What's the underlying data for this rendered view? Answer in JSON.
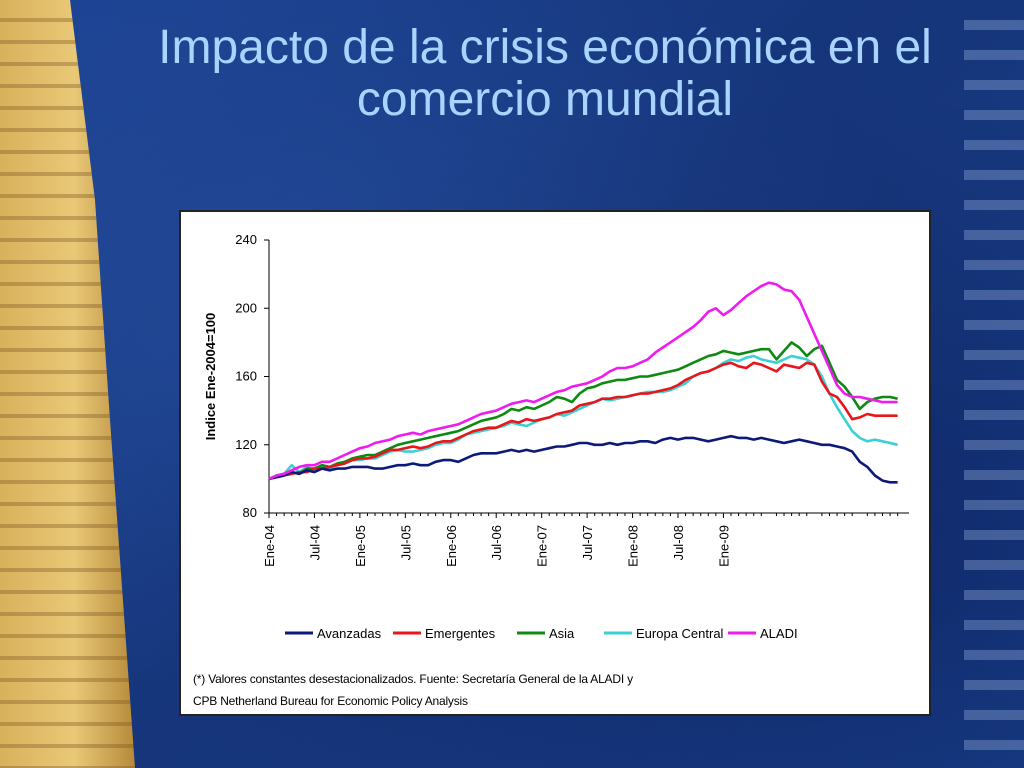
{
  "title": "Impacto de la crisis económica en el comercio mundial",
  "chart_data": {
    "type": "line",
    "ylabel": "Indice Ene-2004=100",
    "ylim": [
      80,
      240
    ],
    "yticks": [
      80,
      120,
      160,
      200,
      240
    ],
    "xlabels": [
      "Ene-04",
      "Jul-04",
      "Ene-05",
      "Jul-05",
      "Ene-06",
      "Jul-06",
      "Ene-07",
      "Jul-07",
      "Ene-08",
      "Jul-08",
      "Ene-09"
    ],
    "x_months_start": "Ene-04",
    "grid": false,
    "legend_position": "bottom",
    "series": [
      {
        "name": "Avanzadas",
        "color": "#0b1a7a",
        "values": [
          100,
          101,
          102,
          104,
          103,
          105,
          104,
          106,
          105,
          106,
          106,
          107,
          107,
          107,
          106,
          106,
          107,
          108,
          108,
          109,
          108,
          108,
          110,
          111,
          111,
          110,
          112,
          114,
          115,
          115,
          115,
          116,
          117,
          116,
          117,
          116,
          117,
          118,
          119,
          119,
          120,
          121,
          121,
          120,
          120,
          121,
          120,
          121,
          121,
          122,
          122,
          121,
          123,
          124,
          123,
          124,
          124,
          123,
          122,
          123,
          124,
          125,
          124,
          124,
          123,
          124,
          123,
          122,
          121,
          122,
          123,
          122,
          121,
          120,
          120,
          119,
          118,
          116,
          110,
          107,
          102,
          99,
          98,
          98
        ]
      },
      {
        "name": "Emergentes",
        "color": "#e8161b",
        "values": [
          100,
          101,
          102,
          103,
          104,
          104,
          106,
          106,
          107,
          108,
          109,
          111,
          112,
          112,
          113,
          115,
          117,
          117,
          118,
          119,
          118,
          119,
          121,
          122,
          122,
          124,
          126,
          128,
          129,
          130,
          130,
          132,
          134,
          133,
          135,
          134,
          135,
          136,
          138,
          139,
          140,
          143,
          144,
          145,
          147,
          147,
          148,
          148,
          149,
          150,
          150,
          151,
          152,
          153,
          155,
          158,
          160,
          162,
          163,
          165,
          167,
          168,
          166,
          165,
          168,
          167,
          165,
          163,
          167,
          166,
          165,
          168,
          167,
          157,
          150,
          148,
          142,
          135,
          136,
          138,
          137,
          137,
          137,
          137
        ]
      },
      {
        "name": "Asia",
        "color": "#0e8a12",
        "values": [
          100,
          102,
          103,
          104,
          103,
          106,
          106,
          108,
          107,
          109,
          110,
          112,
          113,
          114,
          114,
          116,
          118,
          120,
          121,
          122,
          123,
          124,
          125,
          126,
          127,
          128,
          130,
          132,
          134,
          135,
          136,
          138,
          141,
          140,
          142,
          141,
          143,
          145,
          148,
          147,
          145,
          150,
          153,
          154,
          156,
          157,
          158,
          158,
          159,
          160,
          160,
          161,
          162,
          163,
          164,
          166,
          168,
          170,
          172,
          173,
          175,
          174,
          173,
          174,
          175,
          176,
          176,
          170,
          175,
          180,
          177,
          172,
          176,
          178,
          168,
          158,
          154,
          148,
          141,
          145,
          147,
          148,
          148,
          147
        ]
      },
      {
        "name": "Europa Central",
        "color": "#3bd0d4",
        "values": [
          100,
          101,
          103,
          108,
          104,
          107,
          105,
          108,
          106,
          108,
          109,
          111,
          111,
          112,
          112,
          114,
          116,
          117,
          116,
          116,
          117,
          118,
          120,
          121,
          121,
          123,
          126,
          127,
          128,
          129,
          130,
          131,
          133,
          132,
          131,
          133,
          135,
          136,
          138,
          137,
          139,
          141,
          143,
          145,
          147,
          146,
          147,
          148,
          149,
          150,
          151,
          151,
          151,
          152,
          154,
          156,
          160,
          162,
          163,
          165,
          168,
          170,
          169,
          171,
          172,
          170,
          169,
          168,
          170,
          172,
          171,
          170,
          167,
          160,
          150,
          142,
          135,
          128,
          124,
          122,
          123,
          122,
          121,
          120
        ]
      },
      {
        "name": "ALADI",
        "color": "#ee1cee",
        "values": [
          100,
          102,
          103,
          105,
          107,
          108,
          108,
          110,
          110,
          112,
          114,
          116,
          118,
          119,
          121,
          122,
          123,
          125,
          126,
          127,
          126,
          128,
          129,
          130,
          131,
          132,
          134,
          136,
          138,
          139,
          140,
          142,
          144,
          145,
          146,
          145,
          147,
          149,
          151,
          152,
          154,
          155,
          156,
          158,
          160,
          163,
          165,
          165,
          166,
          168,
          170,
          174,
          177,
          180,
          183,
          186,
          189,
          193,
          198,
          200,
          196,
          199,
          203,
          207,
          210,
          213,
          215,
          214,
          211,
          210,
          205,
          195,
          185,
          175,
          165,
          155,
          150,
          148,
          148,
          147,
          146,
          145,
          145,
          145
        ]
      }
    ]
  },
  "footnote": {
    "line1": "(*) Valores constantes desestacionalizados. Fuente: Secretaría General de la ALADI y",
    "line2": "CPB Netherland Bureau for Economic Policy Analysis"
  }
}
